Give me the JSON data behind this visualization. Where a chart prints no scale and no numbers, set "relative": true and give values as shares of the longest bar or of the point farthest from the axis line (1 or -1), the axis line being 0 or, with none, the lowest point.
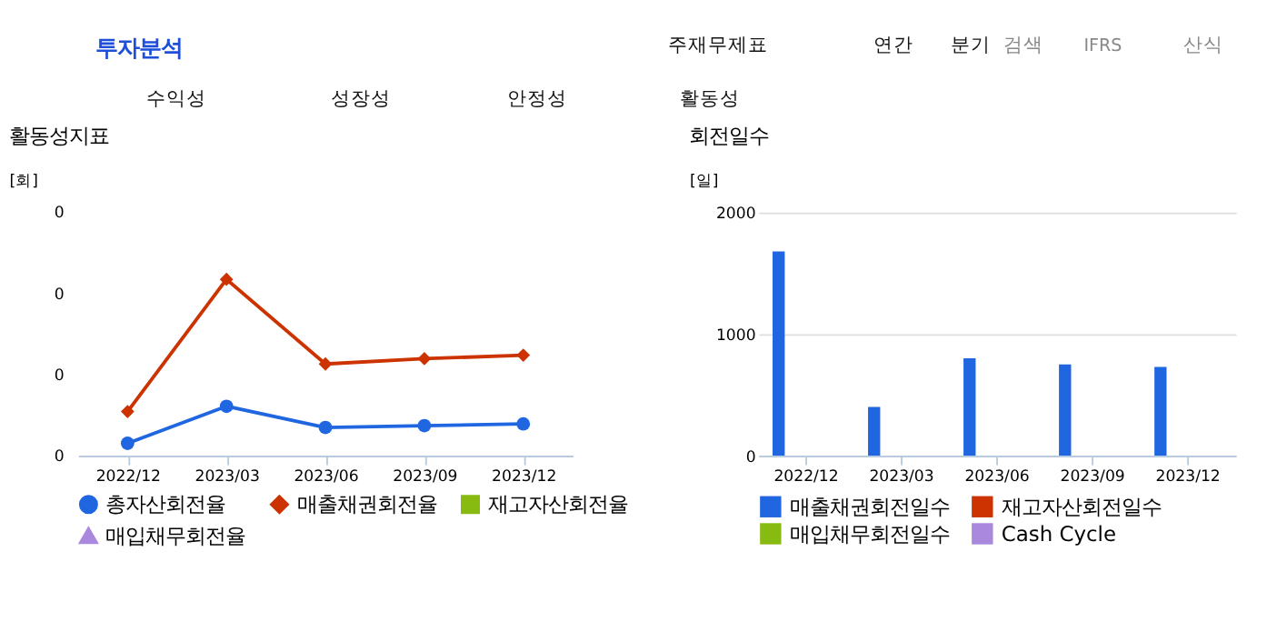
{
  "chart_data": [
    {
      "type": "line",
      "title": "활동성지표",
      "ylabel": "[회]",
      "relative": true,
      "categories": [
        "2022/12",
        "2023/03",
        "2023/06",
        "2023/09",
        "2023/12"
      ],
      "legend": "bottom",
      "line_style": "solid",
      "annotations": [
        "0",
        "0",
        "0",
        "0"
      ],
      "series": [
        {
          "name": "총자산회전율",
          "color": "#1f66e0",
          "marker": "circle",
          "values": [
            0.07,
            0.28,
            0.16,
            0.17,
            0.18
          ]
        },
        {
          "name": "매출채권회전율",
          "color": "#cc3300",
          "marker": "diamond",
          "values": [
            0.25,
            1.0,
            0.52,
            0.55,
            0.57
          ]
        },
        {
          "name": "재고자산회전율",
          "color": "#88bb11",
          "marker": "square",
          "values": [
            null,
            null,
            null,
            null,
            null
          ]
        },
        {
          "name": "매입채무회전율",
          "color": "#aa88dd",
          "marker": "triangle",
          "values": [
            null,
            null,
            null,
            null,
            null
          ]
        }
      ]
    },
    {
      "type": "bar",
      "title": "회전일수",
      "ylabel": "[일]",
      "categories": [
        "2022/12",
        "2023/03",
        "2023/06",
        "2023/09",
        "2023/12"
      ],
      "ylim": [
        0,
        2000
      ],
      "yticks": [
        0,
        1000,
        2000
      ],
      "grid": "y",
      "legend": "bottom",
      "annotations": [
        "투자분석",
        "주재무제표",
        "연간",
        "분기",
        "검색",
        "IFRS",
        "산식",
        "수익성",
        "성장성",
        "안정성",
        "활동성"
      ],
      "series": [
        {
          "name": "매출채권회전일수",
          "color": "#1f66e0",
          "values": [
            1680,
            400,
            800,
            750,
            730
          ]
        },
        {
          "name": "재고자산회전일수",
          "color": "#cc3300",
          "values": [
            null,
            null,
            null,
            null,
            null
          ]
        },
        {
          "name": "매입채무회전일수",
          "color": "#88bb11",
          "values": [
            null,
            null,
            null,
            null,
            null
          ]
        },
        {
          "name": "Cash Cycle",
          "color": "#aa88dd",
          "values": [
            null,
            null,
            null,
            null,
            null
          ]
        }
      ]
    }
  ]
}
